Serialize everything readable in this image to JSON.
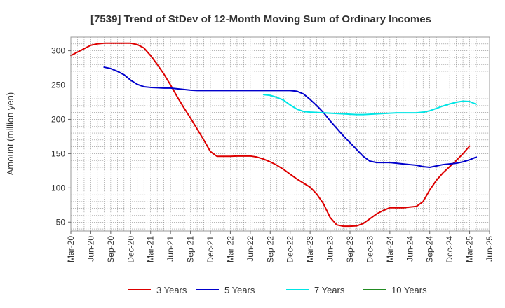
{
  "chart_data": {
    "type": "line",
    "title": "[7539]  Trend of StDev of 12-Month Moving Sum of Ordinary Incomes",
    "xlabel": "",
    "ylabel": "Amount (million yen)",
    "ylim": [
      37,
      320
    ],
    "yticks": [
      50,
      100,
      150,
      200,
      250,
      300
    ],
    "xlim": [
      "2020-03",
      "2025-06"
    ],
    "xticks": [
      "Mar-20",
      "Jun-20",
      "Sep-20",
      "Dec-20",
      "Mar-21",
      "Jun-21",
      "Sep-21",
      "Dec-21",
      "Mar-22",
      "Jun-22",
      "Sep-22",
      "Dec-22",
      "Mar-23",
      "Jun-23",
      "Sep-23",
      "Dec-23",
      "Mar-24",
      "Jun-24",
      "Sep-24",
      "Dec-24",
      "Mar-25",
      "Jun-25"
    ],
    "grid": true,
    "legend_position": "bottom",
    "series": [
      {
        "name": "3 Years",
        "color": "#dd0000",
        "points": [
          [
            "2020-03",
            293
          ],
          [
            "2020-04",
            298
          ],
          [
            "2020-05",
            303
          ],
          [
            "2020-06",
            308
          ],
          [
            "2020-07",
            310
          ],
          [
            "2020-08",
            311
          ],
          [
            "2020-09",
            311
          ],
          [
            "2020-10",
            311
          ],
          [
            "2020-11",
            311
          ],
          [
            "2020-12",
            311
          ],
          [
            "2021-01",
            309
          ],
          [
            "2021-02",
            304
          ],
          [
            "2021-03",
            293
          ],
          [
            "2021-04",
            280
          ],
          [
            "2021-05",
            266
          ],
          [
            "2021-06",
            250
          ],
          [
            "2021-07",
            233
          ],
          [
            "2021-08",
            217
          ],
          [
            "2021-09",
            202
          ],
          [
            "2021-10",
            186
          ],
          [
            "2021-11",
            170
          ],
          [
            "2021-12",
            153
          ],
          [
            "2022-01",
            146
          ],
          [
            "2022-02",
            146
          ],
          [
            "2022-03",
            146
          ],
          [
            "2022-04",
            146.5
          ],
          [
            "2022-05",
            146.5
          ],
          [
            "2022-06",
            146.5
          ],
          [
            "2022-07",
            145
          ],
          [
            "2022-08",
            142
          ],
          [
            "2022-09",
            138
          ],
          [
            "2022-10",
            133
          ],
          [
            "2022-11",
            127
          ],
          [
            "2022-12",
            120
          ],
          [
            "2023-01",
            113
          ],
          [
            "2023-02",
            107
          ],
          [
            "2023-03",
            101
          ],
          [
            "2023-04",
            91
          ],
          [
            "2023-05",
            77
          ],
          [
            "2023-06",
            57
          ],
          [
            "2023-07",
            46
          ],
          [
            "2023-08",
            44
          ],
          [
            "2023-09",
            44
          ],
          [
            "2023-10",
            44.5
          ],
          [
            "2023-11",
            48
          ],
          [
            "2023-12",
            55
          ],
          [
            "2024-01",
            62
          ],
          [
            "2024-02",
            67
          ],
          [
            "2024-03",
            71
          ],
          [
            "2024-04",
            71
          ],
          [
            "2024-05",
            71
          ],
          [
            "2024-06",
            72
          ],
          [
            "2024-07",
            73
          ],
          [
            "2024-08",
            80
          ],
          [
            "2024-09",
            97
          ],
          [
            "2024-10",
            111
          ],
          [
            "2024-11",
            122
          ],
          [
            "2024-12",
            131
          ],
          [
            "2025-01",
            140
          ],
          [
            "2025-02",
            150
          ],
          [
            "2025-03",
            161
          ]
        ]
      },
      {
        "name": "5 Years",
        "color": "#0000cc",
        "points": [
          [
            "2020-08",
            276
          ],
          [
            "2020-09",
            274
          ],
          [
            "2020-10",
            270
          ],
          [
            "2020-11",
            265
          ],
          [
            "2020-12",
            257
          ],
          [
            "2021-01",
            251
          ],
          [
            "2021-02",
            247.5
          ],
          [
            "2021-03",
            246.5
          ],
          [
            "2021-04",
            246
          ],
          [
            "2021-05",
            245.5
          ],
          [
            "2021-06",
            245.5
          ],
          [
            "2021-07",
            244.5
          ],
          [
            "2021-08",
            243.5
          ],
          [
            "2021-09",
            242.5
          ],
          [
            "2021-10",
            242
          ],
          [
            "2021-11",
            242
          ],
          [
            "2021-12",
            242
          ],
          [
            "2022-01",
            242
          ],
          [
            "2022-02",
            242
          ],
          [
            "2022-03",
            242
          ],
          [
            "2022-04",
            242
          ],
          [
            "2022-05",
            242
          ],
          [
            "2022-06",
            242
          ],
          [
            "2022-07",
            242
          ],
          [
            "2022-08",
            242
          ],
          [
            "2022-09",
            242
          ],
          [
            "2022-10",
            242
          ],
          [
            "2022-11",
            242
          ],
          [
            "2022-12",
            242
          ],
          [
            "2023-01",
            241
          ],
          [
            "2023-02",
            237
          ],
          [
            "2023-03",
            229
          ],
          [
            "2023-04",
            220
          ],
          [
            "2023-05",
            210
          ],
          [
            "2023-06",
            198
          ],
          [
            "2023-07",
            187
          ],
          [
            "2023-08",
            176
          ],
          [
            "2023-09",
            166
          ],
          [
            "2023-10",
            156
          ],
          [
            "2023-11",
            146
          ],
          [
            "2023-12",
            139
          ],
          [
            "2024-01",
            137
          ],
          [
            "2024-02",
            137
          ],
          [
            "2024-03",
            137
          ],
          [
            "2024-04",
            136
          ],
          [
            "2024-05",
            135
          ],
          [
            "2024-06",
            134
          ],
          [
            "2024-07",
            133
          ],
          [
            "2024-08",
            131
          ],
          [
            "2024-09",
            130
          ],
          [
            "2024-10",
            132
          ],
          [
            "2024-11",
            134
          ],
          [
            "2024-12",
            135
          ],
          [
            "2025-01",
            136
          ],
          [
            "2025-02",
            138
          ],
          [
            "2025-03",
            141
          ],
          [
            "2025-04",
            145
          ]
        ]
      },
      {
        "name": "7 Years",
        "color": "#00e5e5",
        "points": [
          [
            "2022-08",
            236
          ],
          [
            "2022-09",
            235
          ],
          [
            "2022-10",
            232
          ],
          [
            "2022-11",
            228
          ],
          [
            "2022-12",
            221
          ],
          [
            "2023-01",
            215
          ],
          [
            "2023-02",
            211.5
          ],
          [
            "2023-03",
            210.5
          ],
          [
            "2023-04",
            210
          ],
          [
            "2023-05",
            209.5
          ],
          [
            "2023-06",
            209
          ],
          [
            "2023-07",
            208.5
          ],
          [
            "2023-08",
            208
          ],
          [
            "2023-09",
            207.5
          ],
          [
            "2023-10",
            207
          ],
          [
            "2023-11",
            207
          ],
          [
            "2023-12",
            207.5
          ],
          [
            "2024-01",
            208
          ],
          [
            "2024-02",
            208.5
          ],
          [
            "2024-03",
            209
          ],
          [
            "2024-04",
            209.5
          ],
          [
            "2024-05",
            209.5
          ],
          [
            "2024-06",
            209.5
          ],
          [
            "2024-07",
            209.5
          ],
          [
            "2024-08",
            210.5
          ],
          [
            "2024-09",
            212.5
          ],
          [
            "2024-10",
            216
          ],
          [
            "2024-11",
            219.5
          ],
          [
            "2024-12",
            222.5
          ],
          [
            "2025-01",
            225
          ],
          [
            "2025-02",
            226.5
          ],
          [
            "2025-03",
            226
          ],
          [
            "2025-04",
            222
          ]
        ]
      },
      {
        "name": "10 Years",
        "color": "#228b22",
        "points": []
      }
    ]
  }
}
